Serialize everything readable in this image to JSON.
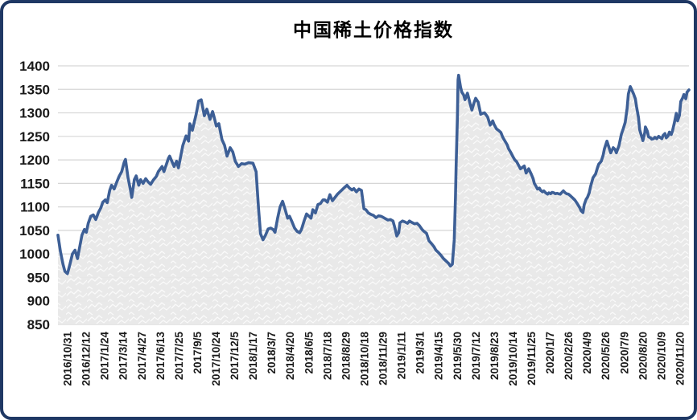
{
  "chart": {
    "title": "中国稀土价格指数"
  },
  "colors": {
    "line": "#3d5f96",
    "area_base": "#e8e8e8",
    "area_accent": "#fafafa",
    "grid": "#d6d6d6",
    "border": "#1f3864",
    "text": "#1a1a1a",
    "background": "#ffffff"
  },
  "chart_data": {
    "type": "area",
    "title": "中国稀土价格指数",
    "xlabel": "",
    "ylabel": "",
    "ylim": [
      850,
      1400
    ],
    "yticks": [
      850,
      900,
      950,
      1000,
      1050,
      1100,
      1150,
      1200,
      1250,
      1300,
      1350,
      1400
    ],
    "grid": "horizontal",
    "legend": "none",
    "categories": [
      "2016/10/31",
      "2016/12/12",
      "2017/1/24",
      "2017/3/14",
      "2017/4/27",
      "2017/6/13",
      "2017/7/25",
      "2017/9/5",
      "2017/10/24",
      "2017/12/5",
      "2018/1/17",
      "2018/3/7",
      "2018/4/20",
      "2018/6/5",
      "2018/7/18",
      "2018/8/29",
      "2018/10/18",
      "2018/11/29",
      "2019/1/11",
      "2019/3/1",
      "2019/4/15",
      "2019/5/30",
      "2019/7/12",
      "2019/8/23",
      "2019/10/14",
      "2019/11/25",
      "2020/1/7",
      "2020/2/26",
      "2020/4/9",
      "2020/5/26",
      "2020/7/9",
      "2020/8/20",
      "2020/10/9",
      "2020/11/20"
    ],
    "x_encoding": "each point is [t, index_value] where t is the fraction of the time axis from 2016/10/31 (0) to 2020/11/20 (1)",
    "series": [
      {
        "name": "中国稀土价格指数",
        "points": [
          [
            0.0,
            1040
          ],
          [
            0.004,
            1005
          ],
          [
            0.008,
            978
          ],
          [
            0.011,
            963
          ],
          [
            0.015,
            958
          ],
          [
            0.019,
            978
          ],
          [
            0.023,
            1000
          ],
          [
            0.027,
            1008
          ],
          [
            0.031,
            990
          ],
          [
            0.034,
            1012
          ],
          [
            0.038,
            1040
          ],
          [
            0.042,
            1052
          ],
          [
            0.045,
            1046
          ],
          [
            0.048,
            1065
          ],
          [
            0.052,
            1080
          ],
          [
            0.056,
            1083
          ],
          [
            0.06,
            1073
          ],
          [
            0.064,
            1088
          ],
          [
            0.068,
            1098
          ],
          [
            0.071,
            1110
          ],
          [
            0.075,
            1115
          ],
          [
            0.078,
            1109
          ],
          [
            0.082,
            1135
          ],
          [
            0.085,
            1146
          ],
          [
            0.089,
            1138
          ],
          [
            0.093,
            1152
          ],
          [
            0.097,
            1165
          ],
          [
            0.101,
            1175
          ],
          [
            0.105,
            1195
          ],
          [
            0.107,
            1201
          ],
          [
            0.111,
            1163
          ],
          [
            0.115,
            1135
          ],
          [
            0.117,
            1120
          ],
          [
            0.121,
            1158
          ],
          [
            0.124,
            1166
          ],
          [
            0.128,
            1146
          ],
          [
            0.131,
            1158
          ],
          [
            0.135,
            1150
          ],
          [
            0.139,
            1160
          ],
          [
            0.143,
            1153
          ],
          [
            0.147,
            1148
          ],
          [
            0.151,
            1157
          ],
          [
            0.156,
            1165
          ],
          [
            0.159,
            1175
          ],
          [
            0.165,
            1186
          ],
          [
            0.168,
            1175
          ],
          [
            0.175,
            1203
          ],
          [
            0.177,
            1208
          ],
          [
            0.184,
            1186
          ],
          [
            0.188,
            1197
          ],
          [
            0.191,
            1183
          ],
          [
            0.198,
            1231
          ],
          [
            0.203,
            1251
          ],
          [
            0.207,
            1240
          ],
          [
            0.209,
            1277
          ],
          [
            0.213,
            1263
          ],
          [
            0.219,
            1297
          ],
          [
            0.223,
            1325
          ],
          [
            0.227,
            1328
          ],
          [
            0.232,
            1294
          ],
          [
            0.236,
            1308
          ],
          [
            0.241,
            1286
          ],
          [
            0.245,
            1303
          ],
          [
            0.247,
            1294
          ],
          [
            0.251,
            1272
          ],
          [
            0.255,
            1277
          ],
          [
            0.26,
            1243
          ],
          [
            0.264,
            1231
          ],
          [
            0.268,
            1208
          ],
          [
            0.273,
            1226
          ],
          [
            0.277,
            1217
          ],
          [
            0.281,
            1197
          ],
          [
            0.286,
            1186
          ],
          [
            0.291,
            1192
          ],
          [
            0.296,
            1191
          ],
          [
            0.302,
            1194
          ],
          [
            0.309,
            1193
          ],
          [
            0.314,
            1175
          ],
          [
            0.318,
            1095
          ],
          [
            0.321,
            1043
          ],
          [
            0.325,
            1030
          ],
          [
            0.329,
            1040
          ],
          [
            0.333,
            1053
          ],
          [
            0.337,
            1055
          ],
          [
            0.341,
            1052
          ],
          [
            0.344,
            1046
          ],
          [
            0.348,
            1075
          ],
          [
            0.352,
            1100
          ],
          [
            0.356,
            1112
          ],
          [
            0.36,
            1095
          ],
          [
            0.364,
            1076
          ],
          [
            0.367,
            1080
          ],
          [
            0.371,
            1068
          ],
          [
            0.375,
            1055
          ],
          [
            0.379,
            1048
          ],
          [
            0.383,
            1045
          ],
          [
            0.386,
            1052
          ],
          [
            0.39,
            1070
          ],
          [
            0.394,
            1085
          ],
          [
            0.398,
            1080
          ],
          [
            0.401,
            1076
          ],
          [
            0.404,
            1094
          ],
          [
            0.408,
            1087
          ],
          [
            0.412,
            1105
          ],
          [
            0.416,
            1107
          ],
          [
            0.42,
            1115
          ],
          [
            0.423,
            1115
          ],
          [
            0.427,
            1110
          ],
          [
            0.431,
            1126
          ],
          [
            0.435,
            1113
          ],
          [
            0.439,
            1120
          ],
          [
            0.443,
            1127
          ],
          [
            0.446,
            1131
          ],
          [
            0.45,
            1136
          ],
          [
            0.454,
            1141
          ],
          [
            0.458,
            1146
          ],
          [
            0.462,
            1140
          ],
          [
            0.466,
            1136
          ],
          [
            0.469,
            1139
          ],
          [
            0.473,
            1132
          ],
          [
            0.477,
            1138
          ],
          [
            0.481,
            1135
          ],
          [
            0.485,
            1096
          ],
          [
            0.488,
            1094
          ],
          [
            0.492,
            1087
          ],
          [
            0.496,
            1084
          ],
          [
            0.5,
            1082
          ],
          [
            0.504,
            1077
          ],
          [
            0.508,
            1081
          ],
          [
            0.512,
            1080
          ],
          [
            0.515,
            1078
          ],
          [
            0.519,
            1075
          ],
          [
            0.523,
            1072
          ],
          [
            0.527,
            1073
          ],
          [
            0.531,
            1070
          ],
          [
            0.534,
            1055
          ],
          [
            0.537,
            1038
          ],
          [
            0.54,
            1045
          ],
          [
            0.542,
            1066
          ],
          [
            0.546,
            1070
          ],
          [
            0.55,
            1068
          ],
          [
            0.554,
            1065
          ],
          [
            0.557,
            1070
          ],
          [
            0.561,
            1067
          ],
          [
            0.565,
            1064
          ],
          [
            0.569,
            1065
          ],
          [
            0.573,
            1060
          ],
          [
            0.577,
            1052
          ],
          [
            0.58,
            1048
          ],
          [
            0.584,
            1044
          ],
          [
            0.588,
            1028
          ],
          [
            0.592,
            1022
          ],
          [
            0.596,
            1015
          ],
          [
            0.599,
            1008
          ],
          [
            0.603,
            1003
          ],
          [
            0.607,
            997
          ],
          [
            0.611,
            990
          ],
          [
            0.615,
            985
          ],
          [
            0.619,
            980
          ],
          [
            0.622,
            974
          ],
          [
            0.625,
            978
          ],
          [
            0.628,
            1030
          ],
          [
            0.63,
            1120
          ],
          [
            0.631,
            1185
          ],
          [
            0.633,
            1290
          ],
          [
            0.634,
            1370
          ],
          [
            0.635,
            1380
          ],
          [
            0.638,
            1355
          ],
          [
            0.64,
            1344
          ],
          [
            0.643,
            1338
          ],
          [
            0.645,
            1328
          ],
          [
            0.649,
            1342
          ],
          [
            0.653,
            1320
          ],
          [
            0.656,
            1306
          ],
          [
            0.659,
            1320
          ],
          [
            0.662,
            1331
          ],
          [
            0.666,
            1323
          ],
          [
            0.67,
            1297
          ],
          [
            0.673,
            1299
          ],
          [
            0.676,
            1300
          ],
          [
            0.679,
            1295
          ],
          [
            0.681,
            1291
          ],
          [
            0.685,
            1274
          ],
          [
            0.689,
            1283
          ],
          [
            0.691,
            1276
          ],
          [
            0.695,
            1266
          ],
          [
            0.699,
            1262
          ],
          [
            0.702,
            1258
          ],
          [
            0.705,
            1248
          ],
          [
            0.708,
            1241
          ],
          [
            0.712,
            1232
          ],
          [
            0.714,
            1224
          ],
          [
            0.718,
            1215
          ],
          [
            0.721,
            1207
          ],
          [
            0.724,
            1200
          ],
          [
            0.727,
            1196
          ],
          [
            0.731,
            1186
          ],
          [
            0.733,
            1181
          ],
          [
            0.736,
            1184
          ],
          [
            0.739,
            1187
          ],
          [
            0.742,
            1172
          ],
          [
            0.746,
            1181
          ],
          [
            0.75,
            1170
          ],
          [
            0.753,
            1160
          ],
          [
            0.755,
            1150
          ],
          [
            0.758,
            1143
          ],
          [
            0.76,
            1138
          ],
          [
            0.763,
            1140
          ],
          [
            0.765,
            1135
          ],
          [
            0.768,
            1132
          ],
          [
            0.77,
            1134
          ],
          [
            0.773,
            1130
          ],
          [
            0.776,
            1127
          ],
          [
            0.778,
            1130
          ],
          [
            0.781,
            1128
          ],
          [
            0.783,
            1131
          ],
          [
            0.786,
            1130
          ],
          [
            0.788,
            1128
          ],
          [
            0.791,
            1129
          ],
          [
            0.793,
            1128
          ],
          [
            0.796,
            1127
          ],
          [
            0.798,
            1130
          ],
          [
            0.801,
            1134
          ],
          [
            0.804,
            1130
          ],
          [
            0.806,
            1128
          ],
          [
            0.809,
            1127
          ],
          [
            0.811,
            1125
          ],
          [
            0.815,
            1120
          ],
          [
            0.819,
            1115
          ],
          [
            0.823,
            1107
          ],
          [
            0.827,
            1098
          ],
          [
            0.829,
            1092
          ],
          [
            0.832,
            1088
          ],
          [
            0.834,
            1105
          ],
          [
            0.837,
            1116
          ],
          [
            0.839,
            1120
          ],
          [
            0.842,
            1130
          ],
          [
            0.844,
            1143
          ],
          [
            0.848,
            1162
          ],
          [
            0.852,
            1170
          ],
          [
            0.855,
            1183
          ],
          [
            0.857,
            1191
          ],
          [
            0.861,
            1197
          ],
          [
            0.864,
            1210
          ],
          [
            0.866,
            1223
          ],
          [
            0.87,
            1240
          ],
          [
            0.872,
            1232
          ],
          [
            0.876,
            1215
          ],
          [
            0.88,
            1226
          ],
          [
            0.883,
            1222
          ],
          [
            0.885,
            1215
          ],
          [
            0.889,
            1230
          ],
          [
            0.893,
            1255
          ],
          [
            0.896,
            1267
          ],
          [
            0.899,
            1280
          ],
          [
            0.902,
            1310
          ],
          [
            0.904,
            1340
          ],
          [
            0.907,
            1356
          ],
          [
            0.909,
            1350
          ],
          [
            0.912,
            1341
          ],
          [
            0.915,
            1330
          ],
          [
            0.917,
            1313
          ],
          [
            0.92,
            1290
          ],
          [
            0.922,
            1264
          ],
          [
            0.925,
            1250
          ],
          [
            0.927,
            1241
          ],
          [
            0.93,
            1258
          ],
          [
            0.931,
            1270
          ],
          [
            0.934,
            1261
          ],
          [
            0.936,
            1249
          ],
          [
            0.939,
            1247
          ],
          [
            0.941,
            1244
          ],
          [
            0.944,
            1245
          ],
          [
            0.946,
            1248
          ],
          [
            0.949,
            1245
          ],
          [
            0.952,
            1250
          ],
          [
            0.954,
            1248
          ],
          [
            0.957,
            1245
          ],
          [
            0.959,
            1252
          ],
          [
            0.962,
            1256
          ],
          [
            0.964,
            1247
          ],
          [
            0.967,
            1251
          ],
          [
            0.969,
            1259
          ],
          [
            0.972,
            1254
          ],
          [
            0.974,
            1262
          ],
          [
            0.977,
            1280
          ],
          [
            0.98,
            1299
          ],
          [
            0.982,
            1283
          ],
          [
            0.985,
            1295
          ],
          [
            0.987,
            1324
          ],
          [
            0.99,
            1332
          ],
          [
            0.992,
            1339
          ],
          [
            0.995,
            1330
          ],
          [
            0.997,
            1344
          ],
          [
            1.0,
            1349
          ]
        ]
      }
    ]
  }
}
